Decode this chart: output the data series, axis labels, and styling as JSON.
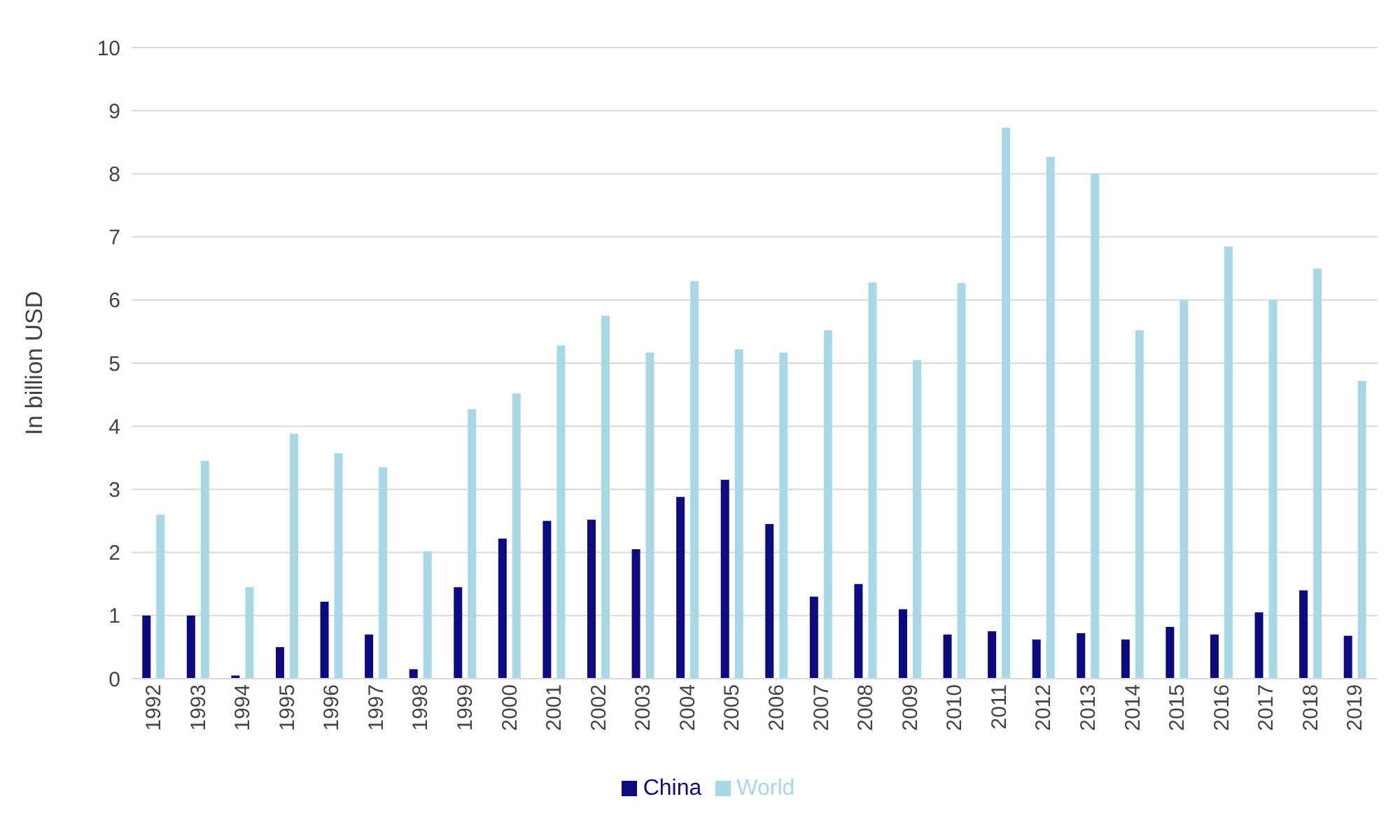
{
  "chart_data": {
    "type": "bar",
    "ylabel": "In billion USD",
    "categories": [
      "1992",
      "1993",
      "1994",
      "1995",
      "1996",
      "1997",
      "1998",
      "1999",
      "2000",
      "2001",
      "2002",
      "2003",
      "2004",
      "2005",
      "2006",
      "2007",
      "2008",
      "2009",
      "2010",
      "2011",
      "2012",
      "2013",
      "2014",
      "2015",
      "2016",
      "2017",
      "2018",
      "2019"
    ],
    "series": [
      {
        "name": "China",
        "color": "#0c0a80",
        "values": [
          1.0,
          1.0,
          0.05,
          0.5,
          1.22,
          0.7,
          0.15,
          1.45,
          2.22,
          2.5,
          2.52,
          2.05,
          2.88,
          3.15,
          2.45,
          1.3,
          1.5,
          1.1,
          0.7,
          0.75,
          0.62,
          0.72,
          0.62,
          0.82,
          0.7,
          1.05,
          1.4,
          0.68
        ]
      },
      {
        "name": "World",
        "color": "#a8d8e6",
        "values": [
          2.6,
          3.45,
          1.45,
          3.88,
          3.57,
          3.35,
          2.02,
          4.27,
          4.52,
          5.28,
          5.75,
          5.17,
          6.3,
          5.22,
          5.17,
          5.52,
          6.28,
          5.05,
          6.27,
          8.73,
          8.27,
          8.0,
          5.52,
          6.0,
          6.85,
          6.0,
          6.5,
          4.72
        ]
      }
    ],
    "ylim": [
      0,
      10
    ],
    "yticks": [
      0,
      1,
      2,
      3,
      4,
      5,
      6,
      7,
      8,
      9,
      10
    ],
    "grid": "y",
    "legend": "bottom"
  }
}
